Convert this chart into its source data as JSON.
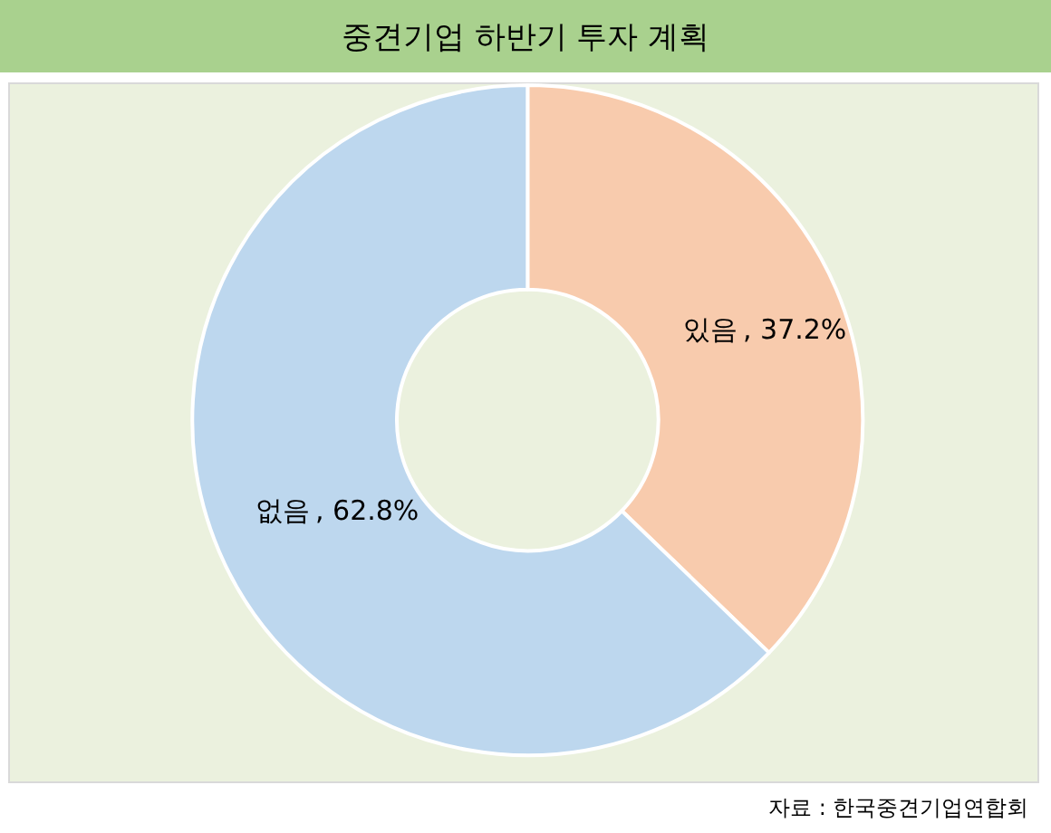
{
  "chart_data": {
    "type": "donut",
    "title": "중견기업 하반기 투자 계획",
    "categories": [
      "있음",
      "없음"
    ],
    "values": [
      37.2,
      62.8
    ],
    "colors": [
      "#f8cbad",
      "#bdd7ee"
    ],
    "value_labels": [
      ", 37.2%",
      ", 62.8%"
    ],
    "annotations": [
      "자료 : 한국중견기업연합회"
    ],
    "legend": false
  }
}
